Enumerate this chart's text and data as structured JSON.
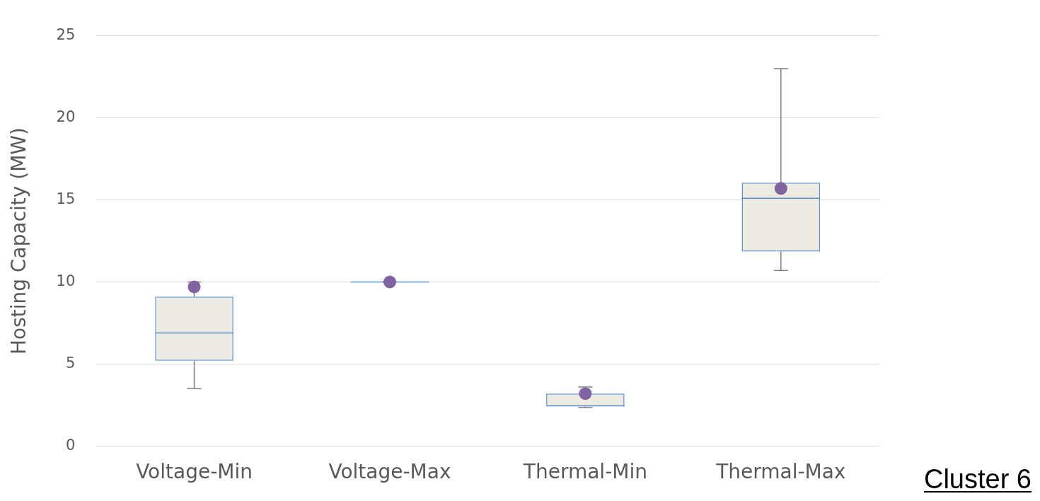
{
  "chart_data": {
    "type": "box",
    "ylabel": "Hosting Capacity (MW)",
    "categories": [
      "Voltage-Min",
      "Voltage-Max",
      "Thermal-Min",
      "Thermal-Max"
    ],
    "boxes": [
      {
        "low": 3.5,
        "q1": 5.2,
        "median": 6.9,
        "q3": 9.1,
        "high": 10,
        "mean": 9.7
      },
      {
        "low": 10,
        "q1": 10,
        "median": 10,
        "q3": 10,
        "high": 10,
        "mean": 10
      },
      {
        "low": 2.35,
        "q1": 2.42,
        "median": 2.45,
        "q3": 3.2,
        "high": 3.6,
        "mean": 3.2
      },
      {
        "low": 10.7,
        "q1": 11.85,
        "median": 15.1,
        "q3": 16.05,
        "high": 23,
        "mean": 15.7
      }
    ],
    "color": "#5b8fd0",
    "ylim": [
      0,
      25
    ],
    "yticks": [
      0,
      5,
      10,
      15,
      20,
      25
    ],
    "grid": "y",
    "legend": false,
    "annotations": [
      "Cluster 6"
    ]
  }
}
